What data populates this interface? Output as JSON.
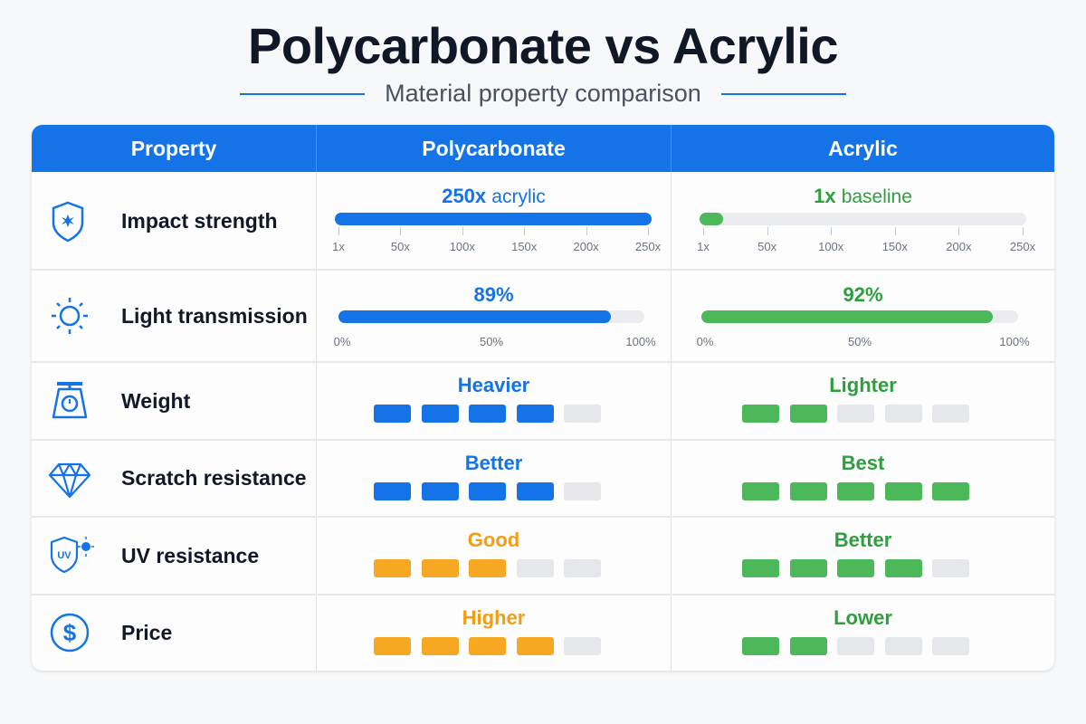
{
  "title": "Polycarbonate vs Acrylic",
  "subtitle": "Material property comparison",
  "colors": {
    "primary": "#1473e6",
    "green": "#4cb85a",
    "orange": "#f7a823",
    "empty": "#e6e7ea",
    "green_text": "#2e9e3e",
    "orange_text": "#f39c12"
  },
  "chart_data": {
    "type": "table",
    "columns": [
      "Property",
      "Polycarbonate",
      "Acrylic"
    ],
    "rows": [
      {
        "property": "Impact strength",
        "icon": "shield-impact-icon",
        "kind": "scale",
        "ticks": [
          "1x",
          "50x",
          "100x",
          "150x",
          "200x",
          "250x"
        ],
        "range": [
          1,
          250
        ],
        "polycarbonate": {
          "value": 250,
          "label_main": "250x",
          "label_sub": "acrylic",
          "color": "primary"
        },
        "acrylic": {
          "value": 1,
          "label_main": "1x",
          "label_sub": "baseline",
          "color": "green"
        }
      },
      {
        "property": "Light transmission",
        "icon": "sun-icon",
        "kind": "percent",
        "ticks": [
          "0%",
          "50%",
          "100%"
        ],
        "range": [
          0,
          100
        ],
        "polycarbonate": {
          "value": 89,
          "label_main": "89%",
          "color": "primary"
        },
        "acrylic": {
          "value": 92,
          "label_main": "92%",
          "color": "green"
        }
      },
      {
        "property": "Weight",
        "icon": "scale-icon",
        "kind": "rating",
        "max": 5,
        "polycarbonate": {
          "value": 4,
          "label_main": "Heavier",
          "color": "primary"
        },
        "acrylic": {
          "value": 2,
          "label_main": "Lighter",
          "color": "green"
        }
      },
      {
        "property": "Scratch resistance",
        "icon": "diamond-icon",
        "kind": "rating",
        "max": 5,
        "polycarbonate": {
          "value": 4,
          "label_main": "Better",
          "color": "primary"
        },
        "acrylic": {
          "value": 5,
          "label_main": "Best",
          "color": "green"
        }
      },
      {
        "property": "UV resistance",
        "icon": "uv-shield-icon",
        "kind": "rating",
        "max": 5,
        "polycarbonate": {
          "value": 3,
          "label_main": "Good",
          "color": "orange"
        },
        "acrylic": {
          "value": 4,
          "label_main": "Better",
          "color": "green"
        }
      },
      {
        "property": "Price",
        "icon": "dollar-icon",
        "kind": "rating",
        "max": 5,
        "polycarbonate": {
          "value": 4,
          "label_main": "Higher",
          "color": "orange"
        },
        "acrylic": {
          "value": 2,
          "label_main": "Lower",
          "color": "green"
        }
      }
    ]
  }
}
